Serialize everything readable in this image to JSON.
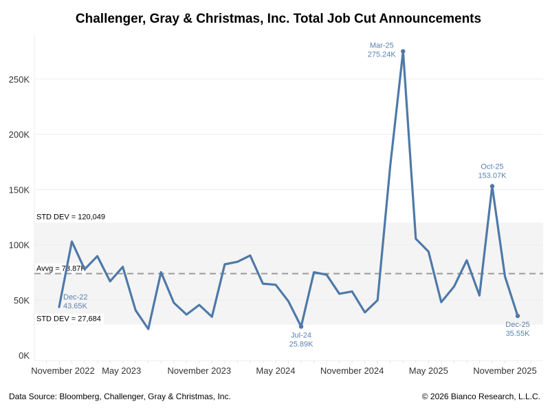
{
  "chart_data": {
    "type": "line",
    "title": "Challenger, Gray & Christmas, Inc. Total Job Cut Announcements",
    "xlabel": "",
    "ylabel": "",
    "ylim": [
      0,
      285
    ],
    "y_unit": "K",
    "grid": true,
    "y_ticks": [
      "0K",
      "50K",
      "100K",
      "150K",
      "200K",
      "250K"
    ],
    "y_tick_values": [
      0,
      50,
      100,
      150,
      200,
      250
    ],
    "x_ticks": [
      {
        "label": "November 2022",
        "index": -1
      },
      {
        "label": "May 2023",
        "index": 5
      },
      {
        "label": "November 2023",
        "index": 11
      },
      {
        "label": "May 2024",
        "index": 17
      },
      {
        "label": "November 2024",
        "index": 23
      },
      {
        "label": "May 2025",
        "index": 29
      },
      {
        "label": "November 2025",
        "index": 35
      }
    ],
    "x": [
      "Dec-22",
      "Jan-23",
      "Feb-23",
      "Mar-23",
      "Apr-23",
      "May-23",
      "Jun-23",
      "Jul-23",
      "Aug-23",
      "Sep-23",
      "Oct-23",
      "Nov-23",
      "Dec-23",
      "Jan-24",
      "Feb-24",
      "Mar-24",
      "Apr-24",
      "May-24",
      "Jun-24",
      "Jul-24",
      "Aug-24",
      "Sep-24",
      "Oct-24",
      "Nov-24",
      "Dec-24",
      "Jan-25",
      "Feb-25",
      "Mar-25",
      "Apr-25",
      "May-25",
      "Jun-25",
      "Jul-25",
      "Aug-25",
      "Sep-25",
      "Oct-25",
      "Nov-25",
      "Dec-25"
    ],
    "series": [
      {
        "name": "Total Job Cut Announcements",
        "color": "#4e79a7",
        "values": [
          43.65,
          102.9,
          77.8,
          89.7,
          66.9,
          80.0,
          40.7,
          23.7,
          75.2,
          47.5,
          36.8,
          45.5,
          34.8,
          82.3,
          84.6,
          90.3,
          64.8,
          63.8,
          48.8,
          25.89,
          75.1,
          72.8,
          55.6,
          57.7,
          38.8,
          49.8,
          172.0,
          275.24,
          105.4,
          93.8,
          48.0,
          62.1,
          85.9,
          54.1,
          153.07,
          71.3,
          35.55
        ]
      }
    ],
    "annotations": [
      {
        "index": 0,
        "line1": "Dec-22",
        "line2": "43.65K",
        "pos": "right"
      },
      {
        "index": 19,
        "line1": "Jul-24",
        "line2": "25.89K",
        "pos": "below"
      },
      {
        "index": 27,
        "line1": "Mar-25",
        "line2": "275.24K",
        "pos": "left"
      },
      {
        "index": 34,
        "line1": "Oct-25",
        "line2": "153.07K",
        "pos": "above"
      },
      {
        "index": 36,
        "line1": "Dec-25",
        "line2": "35.55K",
        "pos": "below"
      }
    ],
    "reference": {
      "average": 73.87,
      "average_label": "Avvg = 73.87K",
      "band_upper": 120.049,
      "band_upper_label": "STD DEV = 120,049",
      "band_lower": 27.684,
      "band_lower_label": "STD DEV = 27,684",
      "band_color": "#f4f4f4",
      "average_color": "#9a9a9a"
    }
  },
  "footer": {
    "source": "Data Source: Bloomberg, Challenger, Gray & Christmas, Inc.",
    "copyright": "© 2026 Bianco Research, L.L.C."
  }
}
